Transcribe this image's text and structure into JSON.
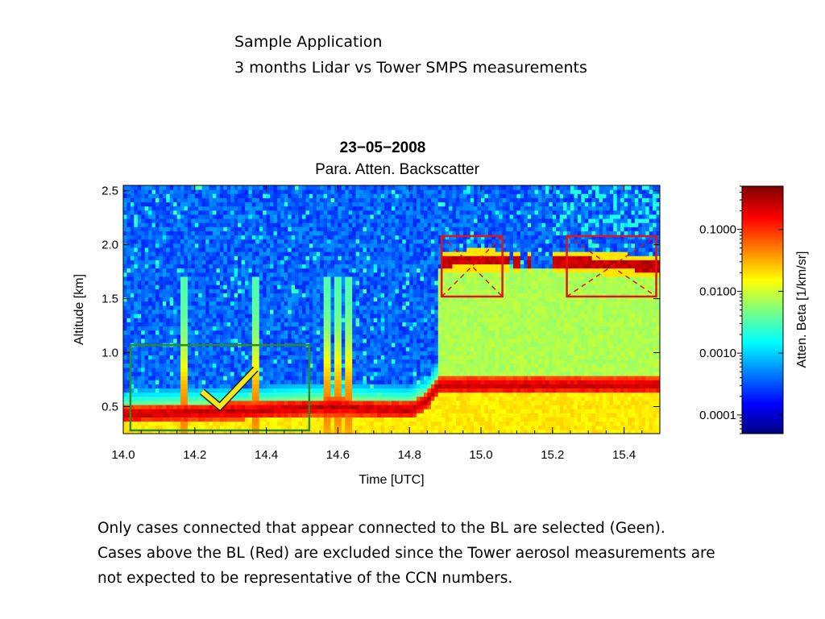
{
  "slide": {
    "title_line1": "Sample Application",
    "title_line2": "3 months Lidar vs Tower SMPS measurements"
  },
  "caption": {
    "line1": "Only cases connected that appear connected to the BL are selected (Geen).",
    "line2": "Cases above the BL (Red) are excluded since the Tower aerosol measurements are",
    "line3": "not expected to be representative of the CCN numbers."
  },
  "chart_data": {
    "type": "heatmap",
    "title": "23−05−2008",
    "subtitle": "Para. Atten. Backscatter",
    "xlabel": "Time [UTC]",
    "ylabel": "Altitude [km]",
    "xlim": [
      14.0,
      15.5
    ],
    "ylim": [
      0.25,
      2.55
    ],
    "x_ticks": [
      14.0,
      14.2,
      14.4,
      14.6,
      14.8,
      15.0,
      15.2,
      15.4
    ],
    "x_tick_labels": [
      "14.0",
      "14.2",
      "14.4",
      "14.6",
      "14.8",
      "15.0",
      "15.2",
      "15.4"
    ],
    "y_ticks": [
      0.5,
      1.0,
      1.5,
      2.0,
      2.5
    ],
    "y_tick_labels": [
      "0.5",
      "1.0",
      "1.5",
      "2.0",
      "2.5"
    ],
    "colorbar": {
      "label": "Atten. Beta [1/km/sr]",
      "scale": "log",
      "range": [
        5e-05,
        0.5
      ],
      "ticks": [
        0.0001,
        0.001,
        0.01,
        0.1
      ],
      "tick_labels": [
        "0.0001",
        "0.0010",
        "0.0100",
        "0.1000"
      ],
      "colormap": "jet"
    },
    "boundary_layer": {
      "time": [
        14.0,
        14.1,
        14.2,
        14.3,
        14.4,
        14.5,
        14.6,
        14.7,
        14.8,
        14.85,
        14.88
      ],
      "height": [
        0.43,
        0.44,
        0.45,
        0.46,
        0.47,
        0.49,
        0.5,
        0.48,
        0.47,
        0.55,
        0.7
      ]
    },
    "elevated_layer": {
      "time": [
        14.9,
        15.0,
        15.1,
        15.2,
        15.3,
        15.4,
        15.5
      ],
      "height": [
        1.85,
        1.86,
        1.85,
        1.84,
        1.83,
        1.82,
        1.8
      ]
    },
    "annotations": [
      {
        "kind": "box",
        "color": "#2f8a1f",
        "meaning": "selected",
        "x": [
          14.02,
          14.52
        ],
        "y": [
          0.28,
          1.07
        ]
      },
      {
        "kind": "box",
        "color": "#e0141a",
        "meaning": "excluded",
        "x": [
          14.89,
          15.06
        ],
        "y": [
          1.52,
          2.08
        ],
        "crossed": true
      },
      {
        "kind": "box",
        "color": "#e0141a",
        "meaning": "excluded",
        "x": [
          15.24,
          15.49
        ],
        "y": [
          1.52,
          2.08
        ],
        "crossed": true
      },
      {
        "kind": "checkmark",
        "color": "#f6e81d",
        "x": [
          14.22,
          14.27,
          14.37
        ],
        "y": [
          0.64,
          0.5,
          0.85
        ]
      }
    ]
  }
}
